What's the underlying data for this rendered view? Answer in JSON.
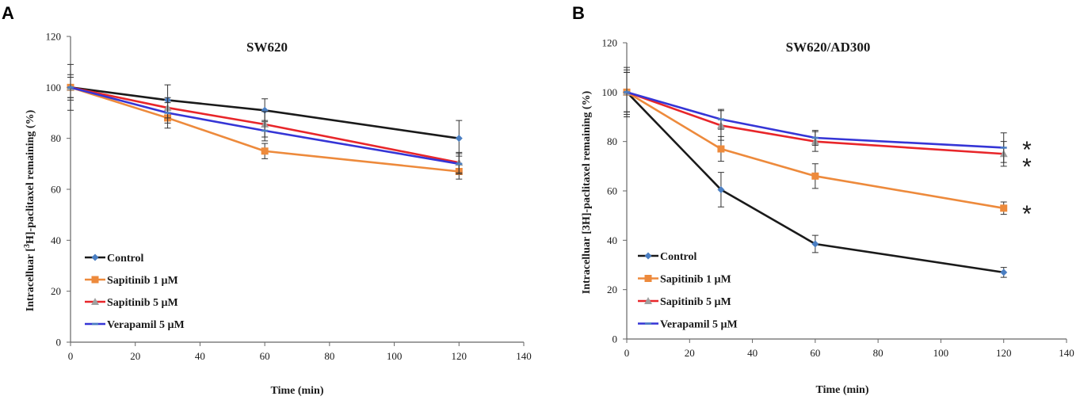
{
  "colors": {
    "control": "#1a1a1a",
    "control_marker": "#4a7ec2",
    "sap1": "#ed8a3c",
    "sap5": "#e8262a",
    "sap5_marker": "#a0a0a0",
    "vera": "#3535d6",
    "vera_marker": "#4a7ec2",
    "axis": "#666666",
    "errorbar": "#333333"
  },
  "chart_data": [
    {
      "panel": "A",
      "type": "line",
      "title": "SW620",
      "xlabel": "Time (min)",
      "ylabel": "Intracelluar [³H]-paclitaxel remaining (%)",
      "xlim": [
        0,
        140
      ],
      "ylim": [
        0,
        120
      ],
      "xticks": [
        "0",
        "20",
        "40",
        "60",
        "80",
        "100",
        "120",
        "140"
      ],
      "yticks": [
        "0",
        "20",
        "40",
        "60",
        "80",
        "100",
        "120"
      ],
      "x": [
        0,
        30,
        60,
        120
      ],
      "series": [
        {
          "name": "Control",
          "key": "control",
          "values": [
            100,
            95,
            91,
            80
          ],
          "errors": [
            9,
            6,
            4.5,
            7
          ]
        },
        {
          "name": "Sapitinib 1 µM",
          "key": "sap1",
          "values": [
            100,
            88,
            75,
            67
          ],
          "errors": [
            4,
            4,
            3,
            3
          ]
        },
        {
          "name": "Sapitinib 5 µM",
          "key": "sap5",
          "values": [
            100,
            92,
            85.5,
            70.5
          ],
          "errors": [
            5,
            4,
            5,
            4
          ]
        },
        {
          "name": "Verapamil 5 µM",
          "key": "vera",
          "values": [
            100,
            90,
            83,
            70
          ],
          "errors": [
            4,
            4,
            4,
            4
          ]
        }
      ],
      "significance": []
    },
    {
      "panel": "B",
      "type": "line",
      "title": "SW620/AD300",
      "xlabel": "Time (min)",
      "ylabel": "Intracelluar [3H]-paclitaxel remaining (%)",
      "xlim": [
        0,
        140
      ],
      "ylim": [
        0,
        120
      ],
      "xticks": [
        "0",
        "20",
        "40",
        "60",
        "80",
        "100",
        "120",
        "140"
      ],
      "yticks": [
        "0",
        "20",
        "40",
        "60",
        "80",
        "100",
        "120"
      ],
      "x": [
        0,
        30,
        60,
        120
      ],
      "series": [
        {
          "name": "Control",
          "key": "control",
          "values": [
            100,
            60.5,
            38.5,
            27
          ],
          "errors": [
            10,
            7,
            3.5,
            2
          ]
        },
        {
          "name": "Sapitinib 1 µM",
          "key": "sap1",
          "values": [
            100,
            77,
            66,
            53
          ],
          "errors": [
            8,
            5,
            5,
            2.5
          ]
        },
        {
          "name": "Sapitinib 5 µM",
          "key": "sap5",
          "values": [
            100,
            86.5,
            80,
            75
          ],
          "errors": [
            9,
            6,
            4,
            5
          ]
        },
        {
          "name": "Verapamil 5 µM",
          "key": "vera",
          "values": [
            100,
            89,
            81.5,
            77.5
          ],
          "errors": [
            8,
            4,
            3,
            6
          ]
        }
      ],
      "significance": [
        {
          "label": "*",
          "series": "vera",
          "y": 78
        },
        {
          "label": "*",
          "series": "sap5",
          "y": 71
        },
        {
          "label": "*",
          "series": "sap1",
          "y": 52
        }
      ]
    }
  ]
}
